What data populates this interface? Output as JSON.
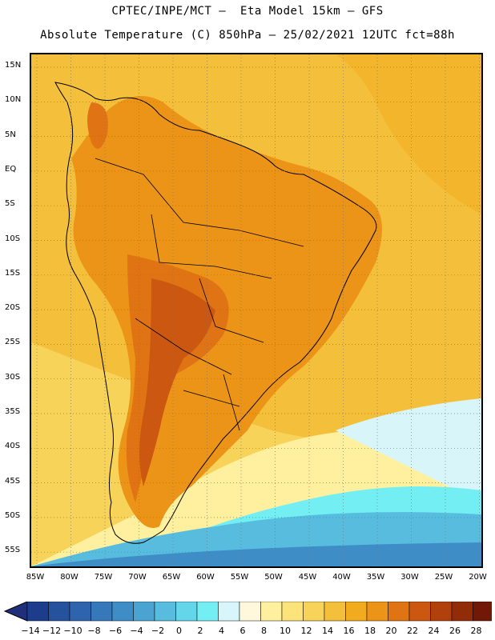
{
  "title": {
    "line1": "CPTEC/INPE/MCT –  Eta Model 15km – GFS",
    "line2": "Absolute Temperature (C) 850hPa – 25/02/2021 12UTC fct=88h"
  },
  "lat_labels": [
    "15N",
    "10N",
    "5N",
    "EQ",
    "5S",
    "10S",
    "15S",
    "20S",
    "25S",
    "30S",
    "35S",
    "40S",
    "45S",
    "50S",
    "55S"
  ],
  "lon_labels": [
    "85W",
    "80W",
    "75W",
    "70W",
    "65W",
    "60W",
    "55W",
    "50W",
    "45W",
    "40W",
    "35W",
    "30W",
    "25W",
    "20W"
  ],
  "colorbar": {
    "labels": [
      "-14",
      "-12",
      "-10",
      "-8",
      "-6",
      "-4",
      "-2",
      "0",
      "2",
      "4",
      "6",
      "8",
      "10",
      "12",
      "14",
      "16",
      "18",
      "20",
      "22",
      "24",
      "26",
      "28"
    ],
    "colors": [
      "#1b3d8c",
      "#26519c",
      "#2e64ad",
      "#3778bb",
      "#3f8dc6",
      "#4aa3d1",
      "#57bcde",
      "#63d6ea",
      "#73eef2",
      "#d8f6fa",
      "#fff8dc",
      "#fff0a0",
      "#fce47a",
      "#f8d35a",
      "#f4c03c",
      "#f1ab1e",
      "#ec9418",
      "#e07414",
      "#cc5710",
      "#b2400c",
      "#912b08",
      "#711806"
    ],
    "under_color": "#1f2f7a",
    "over_color": "#7a0c14"
  },
  "map_colors": {
    "ocean_north": "#f1ab1e",
    "ocean_mid": "#f4c03c",
    "ocean_south_warm": "#f8d35a",
    "cool_band": "#fff0a0",
    "cold_band1": "#d8f6fa",
    "cold_band2": "#73eef2",
    "cold_band3": "#57bcde",
    "cold_band4": "#3f8dc6",
    "land_warm": "#ec9418",
    "land_hot": "#e07414",
    "land_hotter": "#cc5710",
    "coast": "#000000"
  }
}
